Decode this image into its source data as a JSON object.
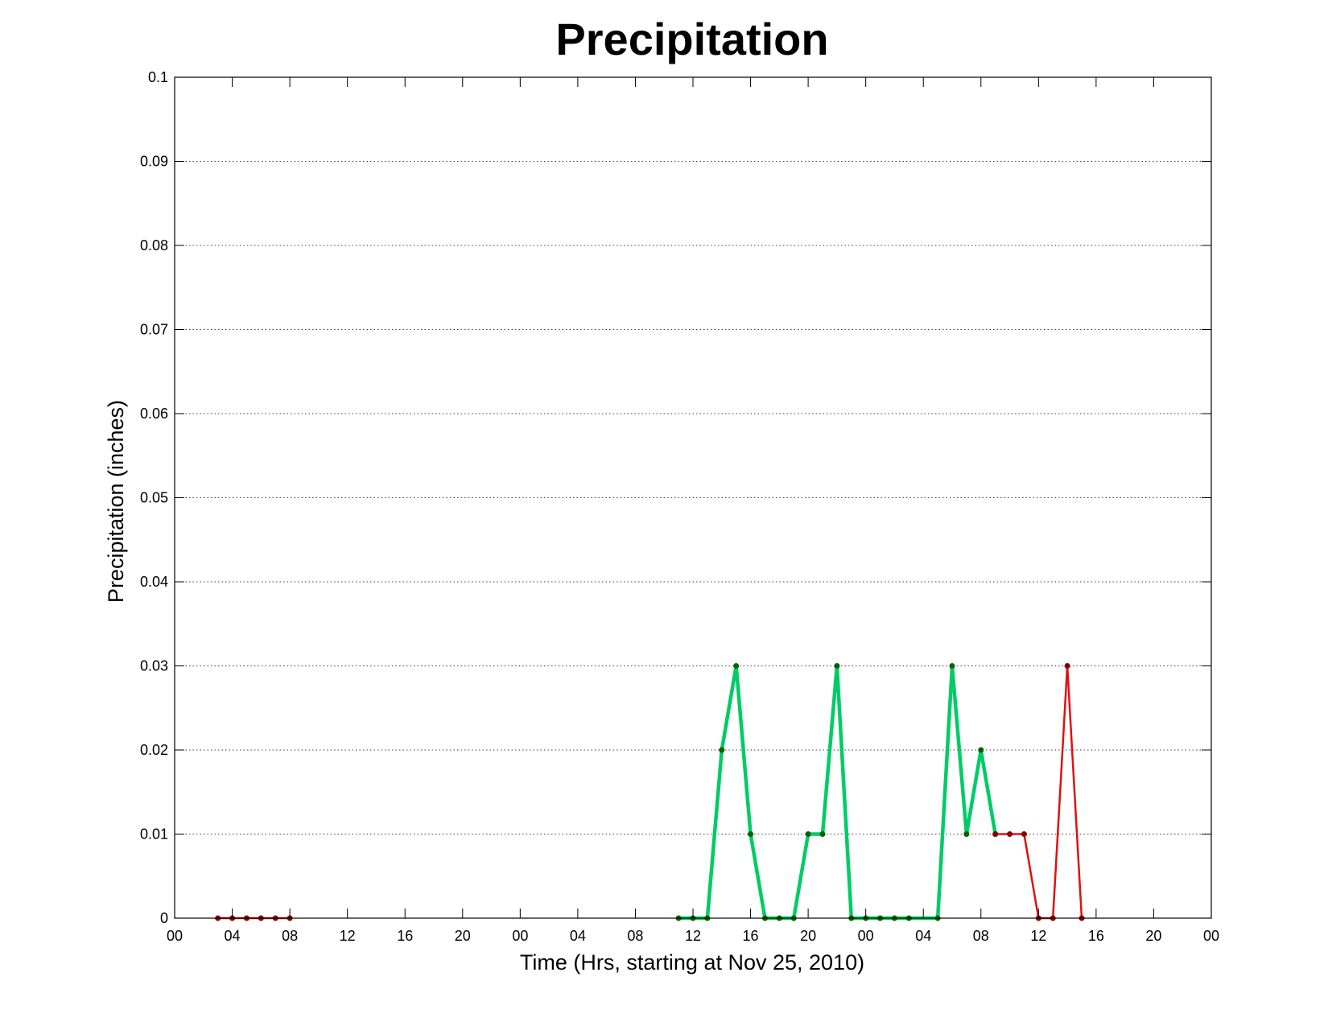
{
  "chart_data": {
    "type": "line",
    "title": "Precipitation",
    "xlabel": "Time (Hrs, starting at Nov 25, 2010)",
    "ylabel": "Precipitation (inches)",
    "xlim": [
      0,
      72
    ],
    "ylim": [
      0,
      0.1
    ],
    "grid": true,
    "x_ticks": [
      0,
      4,
      8,
      12,
      16,
      20,
      24,
      28,
      32,
      36,
      40,
      44,
      48,
      52,
      56,
      60,
      64,
      68,
      72
    ],
    "x_tick_labels": [
      "00",
      "04",
      "08",
      "12",
      "16",
      "20",
      "00",
      "04",
      "08",
      "12",
      "16",
      "20",
      "00",
      "04",
      "08",
      "12",
      "16",
      "20",
      "00"
    ],
    "y_ticks": [
      0,
      0.01,
      0.02,
      0.03,
      0.04,
      0.05,
      0.06,
      0.07,
      0.08,
      0.09,
      0.1
    ],
    "y_tick_labels": [
      "0",
      "0.01",
      "0.02",
      "0.03",
      "0.04",
      "0.05",
      "0.06",
      "0.07",
      "0.08",
      "0.09",
      "0.1"
    ],
    "series": [
      {
        "color": "#e01010",
        "marker_color": "#8b0000",
        "line_width": 2.5,
        "x": [
          3,
          4,
          5,
          6,
          7,
          8
        ],
        "y": [
          0,
          0,
          0,
          0,
          0,
          0
        ]
      },
      {
        "color": "#00cc66",
        "marker_color": "#006400",
        "line_width": 4.5,
        "x": [
          35,
          36,
          37,
          38,
          39,
          40,
          41,
          42,
          43,
          44,
          45,
          46,
          47,
          48,
          49,
          50,
          51,
          53,
          54,
          55,
          56,
          57
        ],
        "y": [
          0,
          0,
          0,
          0.02,
          0.03,
          0.01,
          0,
          0,
          0,
          0.01,
          0.01,
          0.03,
          0,
          0,
          0,
          0,
          0,
          0,
          0.03,
          0.01,
          0.02,
          0.01
        ]
      },
      {
        "color": "#e01010",
        "marker_color": "#8b0000",
        "line_width": 2.5,
        "x": [
          57,
          58,
          59,
          60,
          61,
          62,
          63
        ],
        "y": [
          0.01,
          0.01,
          0.01,
          0,
          0,
          0.03,
          0
        ]
      }
    ]
  }
}
